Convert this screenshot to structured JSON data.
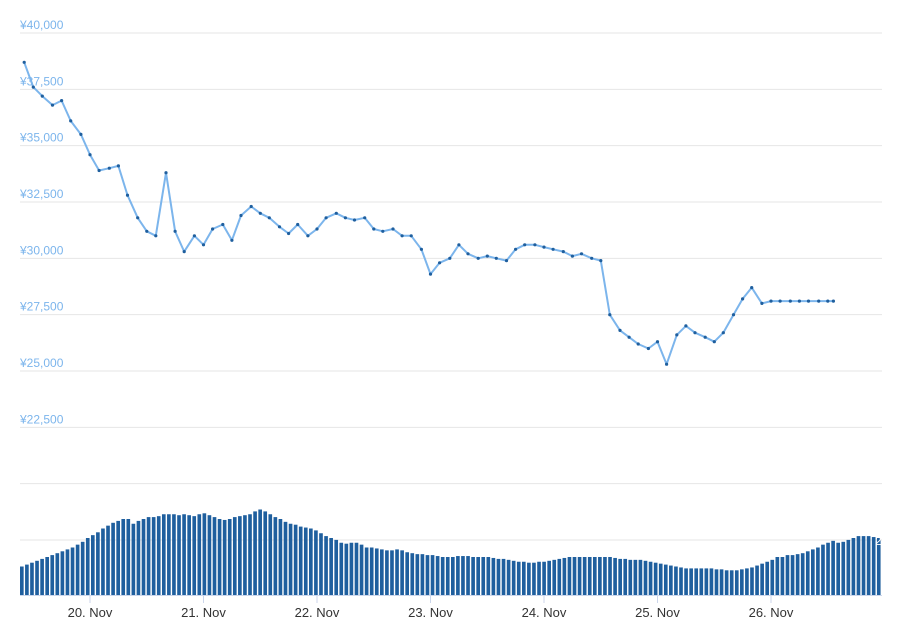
{
  "chart_data": {
    "type": "line",
    "currency_prefix": "¥",
    "y_tick_labels": [
      "¥40,000",
      "¥37,500",
      "¥35,000",
      "¥32,500",
      "¥30,000",
      "¥27,500",
      "¥25,000",
      "¥22,500"
    ],
    "y_ticks": [
      40000,
      37500,
      35000,
      32500,
      30000,
      27500,
      25000,
      22500
    ],
    "ylim": [
      20000,
      41000
    ],
    "x_tick_labels": [
      "20. Nov",
      "21. Nov",
      "22. Nov",
      "23. Nov",
      "24. Nov",
      "25. Nov",
      "26. Nov"
    ],
    "x_ticks": [
      20,
      21,
      22,
      23,
      24,
      25,
      26
    ],
    "xlim": [
      19.42,
      26.55
    ],
    "grid": true,
    "legend": "none",
    "price_series": {
      "x": [
        19.42,
        19.5,
        19.58,
        19.67,
        19.75,
        19.83,
        19.92,
        20.0,
        20.08,
        20.17,
        20.25,
        20.33,
        20.42,
        20.5,
        20.58,
        20.67,
        20.75,
        20.83,
        20.92,
        21.0,
        21.08,
        21.17,
        21.25,
        21.33,
        21.42,
        21.5,
        21.58,
        21.67,
        21.75,
        21.83,
        21.92,
        22.0,
        22.08,
        22.17,
        22.25,
        22.33,
        22.42,
        22.5,
        22.58,
        22.67,
        22.75,
        22.83,
        22.92,
        23.0,
        23.08,
        23.17,
        23.25,
        23.33,
        23.42,
        23.5,
        23.58,
        23.67,
        23.75,
        23.83,
        23.92,
        24.0,
        24.08,
        24.17,
        24.25,
        24.33,
        24.42,
        24.5,
        24.58,
        24.67,
        24.75,
        24.83,
        24.92,
        25.0,
        25.08,
        25.17,
        25.25,
        25.33,
        25.42,
        25.5,
        25.58,
        25.67,
        25.75,
        25.83,
        25.92,
        26.0,
        26.08,
        26.17,
        26.25,
        26.33,
        26.42,
        26.5,
        26.55
      ],
      "y": [
        38700,
        37600,
        37200,
        36800,
        37000,
        36100,
        35500,
        34600,
        33900,
        34000,
        34100,
        32800,
        31800,
        31200,
        31000,
        33800,
        31200,
        30300,
        31000,
        30600,
        31300,
        31500,
        30800,
        31900,
        32300,
        32000,
        31800,
        31400,
        31100,
        31500,
        31000,
        31300,
        31800,
        32000,
        31800,
        31700,
        31800,
        31300,
        31200,
        31300,
        31000,
        31000,
        30400,
        29300,
        29800,
        30000,
        30600,
        30200,
        30000,
        30100,
        30000,
        29900,
        30400,
        30600,
        30600,
        30500,
        30400,
        30300,
        30100,
        30200,
        30000,
        29900,
        27500,
        26800,
        26500,
        26200,
        26000,
        26300,
        25300,
        26600,
        27000,
        26700,
        26500,
        26300,
        26700,
        27500,
        28200,
        28700,
        28000,
        28100,
        28100,
        28100,
        28100,
        28100,
        28100,
        28100,
        28100
      ]
    },
    "volume_series": {
      "values": [
        30,
        32,
        34,
        36,
        38,
        40,
        42,
        44,
        46,
        48,
        50,
        53,
        56,
        60,
        63,
        66,
        70,
        73,
        76,
        78,
        80,
        80,
        75,
        78,
        80,
        82,
        82,
        83,
        85,
        85,
        85,
        84,
        85,
        84,
        83,
        85,
        86,
        84,
        82,
        80,
        79,
        80,
        82,
        83,
        84,
        85,
        88,
        90,
        88,
        85,
        82,
        80,
        77,
        75,
        74,
        72,
        71,
        70,
        68,
        65,
        62,
        60,
        58,
        55,
        54,
        55,
        55,
        53,
        50,
        50,
        49,
        48,
        47,
        47,
        48,
        47,
        45,
        44,
        43,
        43,
        42,
        42,
        41,
        40,
        40,
        40,
        41,
        41,
        41,
        40,
        40,
        40,
        40,
        39,
        38,
        38,
        37,
        36,
        35,
        35,
        34,
        34,
        35,
        35,
        36,
        37,
        38,
        39,
        40,
        40,
        40,
        40,
        40,
        40,
        40,
        40,
        40,
        39,
        38,
        38,
        37,
        37,
        37,
        36,
        35,
        34,
        33,
        32,
        31,
        30,
        29,
        28,
        28,
        28,
        28,
        28,
        28,
        27,
        27,
        26,
        26,
        26,
        27,
        28,
        29,
        31,
        33,
        35,
        37,
        40,
        40,
        42,
        42,
        43,
        44,
        46,
        48,
        50,
        53,
        55,
        57,
        55,
        56,
        58,
        60,
        62,
        62,
        62,
        61,
        60
      ],
      "right_edge_label": "2"
    }
  }
}
